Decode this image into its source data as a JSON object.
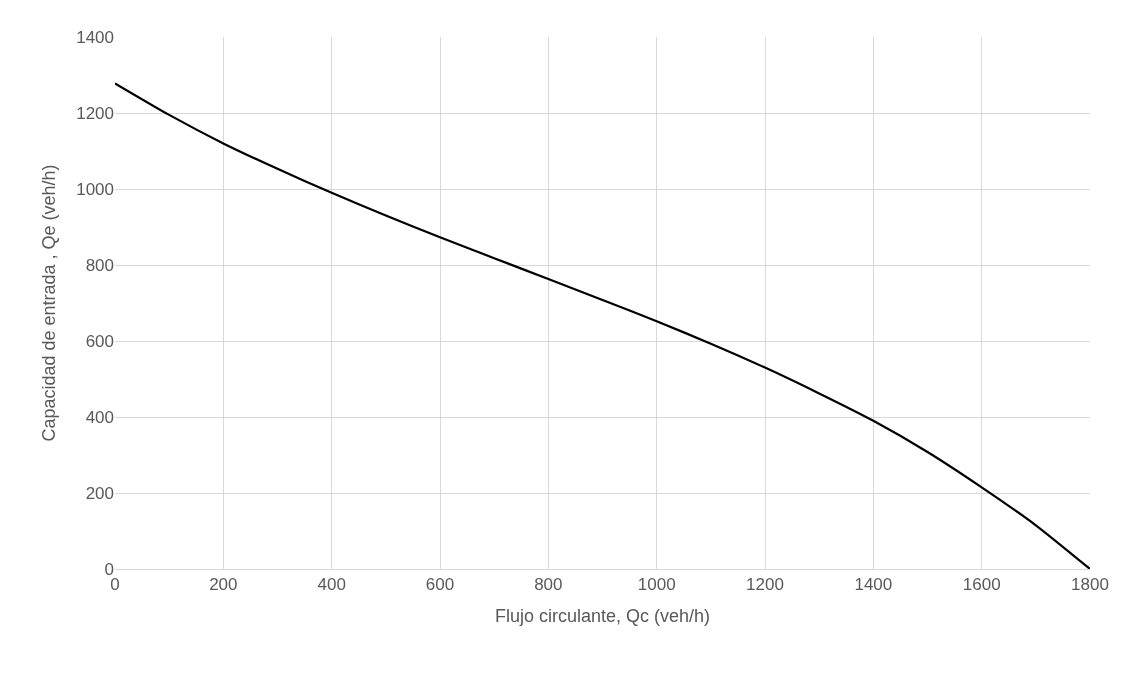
{
  "chart_data": {
    "type": "line",
    "xlabel": "Flujo circulante, Qc (veh/h)",
    "ylabel": "Capacidad de entrada , Qe (veh/h)",
    "x": [
      0,
      100,
      200,
      300,
      400,
      500,
      600,
      700,
      800,
      900,
      1000,
      1100,
      1200,
      1300,
      1400,
      1500,
      1600,
      1700,
      1800
    ],
    "series": [
      {
        "color": "#000000",
        "values": [
          1278,
          1195,
          1120,
          1053,
          990,
          930,
          873,
          818,
          763,
          708,
          652,
          593,
          530,
          462,
          390,
          308,
          215,
          115,
          0
        ]
      }
    ],
    "xlim": [
      0,
      1800
    ],
    "xticks": [
      0,
      200,
      400,
      600,
      800,
      1000,
      1200,
      1400,
      1600,
      1800
    ],
    "ylim": [
      0,
      1400
    ],
    "yticks": [
      0,
      200,
      400,
      600,
      800,
      1000,
      1200,
      1400
    ],
    "grid": true,
    "marker": "none",
    "line_style": "solid"
  }
}
